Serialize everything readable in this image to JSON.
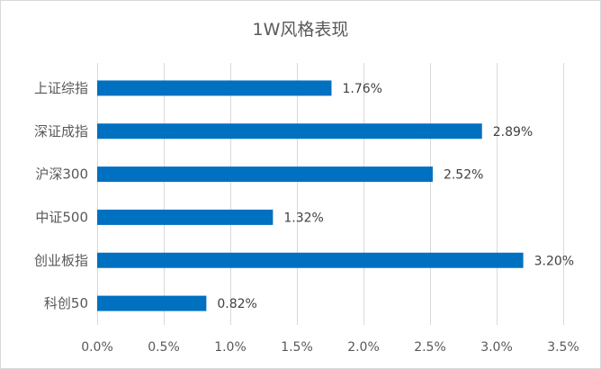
{
  "chart_data": {
    "type": "bar",
    "orientation": "horizontal",
    "title": "1W风格表现",
    "categories": [
      "上证综指",
      "深证成指",
      "沪深300",
      "中证500",
      "创业板指",
      "科创50"
    ],
    "values": [
      1.76,
      2.89,
      2.52,
      1.32,
      3.2,
      0.82
    ],
    "data_labels": [
      "1.76%",
      "2.89%",
      "2.52%",
      "1.32%",
      "3.20%",
      "0.82%"
    ],
    "xlim": [
      0,
      3.5
    ],
    "x_ticks": [
      0,
      0.5,
      1.0,
      1.5,
      2.0,
      2.5,
      3.0,
      3.5
    ],
    "x_tick_labels": [
      "0.0%",
      "0.5%",
      "1.0%",
      "1.5%",
      "2.0%",
      "2.5%",
      "3.0%",
      "3.5%"
    ],
    "grid": true,
    "bar_color": "#0070C0"
  }
}
